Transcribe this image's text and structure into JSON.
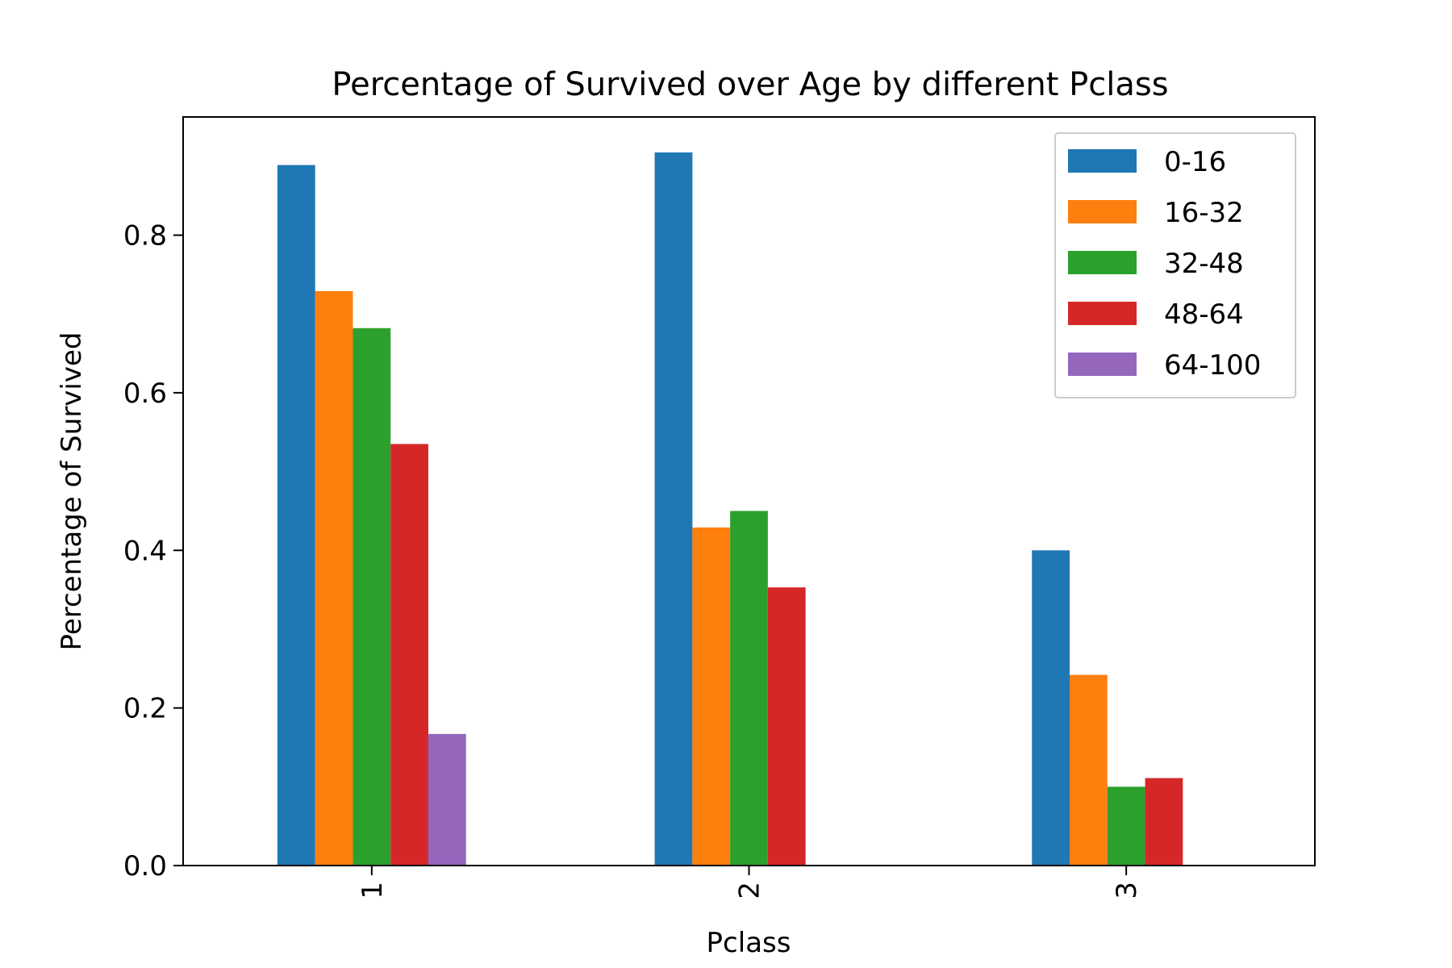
{
  "chart_data": {
    "type": "bar",
    "title": "Percentage of Survived over Age by different Pclass",
    "xlabel": "Pclass",
    "ylabel": "Percentage of Survived",
    "categories": [
      "1",
      "2",
      "3"
    ],
    "ylim": [
      0,
      0.95
    ],
    "yticks": [
      0.0,
      0.2,
      0.4,
      0.6,
      0.8
    ],
    "ytick_labels": [
      "0.0",
      "0.2",
      "0.4",
      "0.6",
      "0.8"
    ],
    "grid": false,
    "legend_position": "top-right",
    "series": [
      {
        "name": "0-16",
        "color": "#1f77b4",
        "values": [
          0.889,
          0.905,
          0.4
        ]
      },
      {
        "name": "16-32",
        "color": "#ff7f0e",
        "values": [
          0.729,
          0.429,
          0.242
        ]
      },
      {
        "name": "32-48",
        "color": "#2ca02c",
        "values": [
          0.682,
          0.45,
          0.1
        ]
      },
      {
        "name": "48-64",
        "color": "#d62728",
        "values": [
          0.535,
          0.353,
          0.111
        ]
      },
      {
        "name": "64-100",
        "color": "#9467bd",
        "values": [
          0.167,
          null,
          null
        ]
      }
    ]
  }
}
